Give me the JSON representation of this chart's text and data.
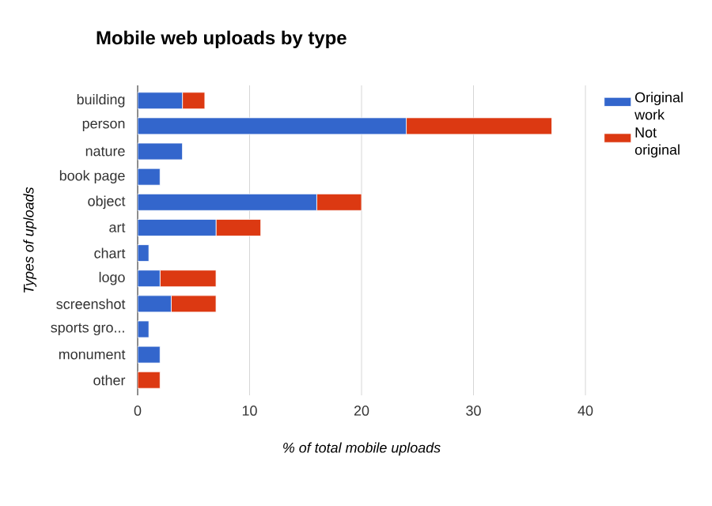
{
  "chart_data": {
    "type": "bar",
    "orientation": "horizontal",
    "stacked": true,
    "title": "Mobile web uploads by type",
    "xlabel": "% of total mobile uploads",
    "ylabel": "Types of uploads",
    "categories": [
      "building",
      "person",
      "nature",
      "book page",
      "object",
      "art",
      "chart",
      "logo",
      "screenshot",
      "sports gro...",
      "monument",
      "other"
    ],
    "series": [
      {
        "name": "Original work",
        "color": "#3366cc",
        "values": [
          4,
          24,
          4,
          2,
          16,
          7,
          1,
          2,
          3,
          1,
          2,
          0
        ]
      },
      {
        "name": "Not original",
        "color": "#dc3912",
        "values": [
          2,
          13,
          0,
          0,
          4,
          4,
          0,
          5,
          4,
          0,
          0,
          2
        ]
      }
    ],
    "xlim": [
      0,
      40
    ],
    "xticks": [
      0,
      10,
      20,
      30,
      40
    ],
    "grid": "x",
    "legend": "right"
  }
}
